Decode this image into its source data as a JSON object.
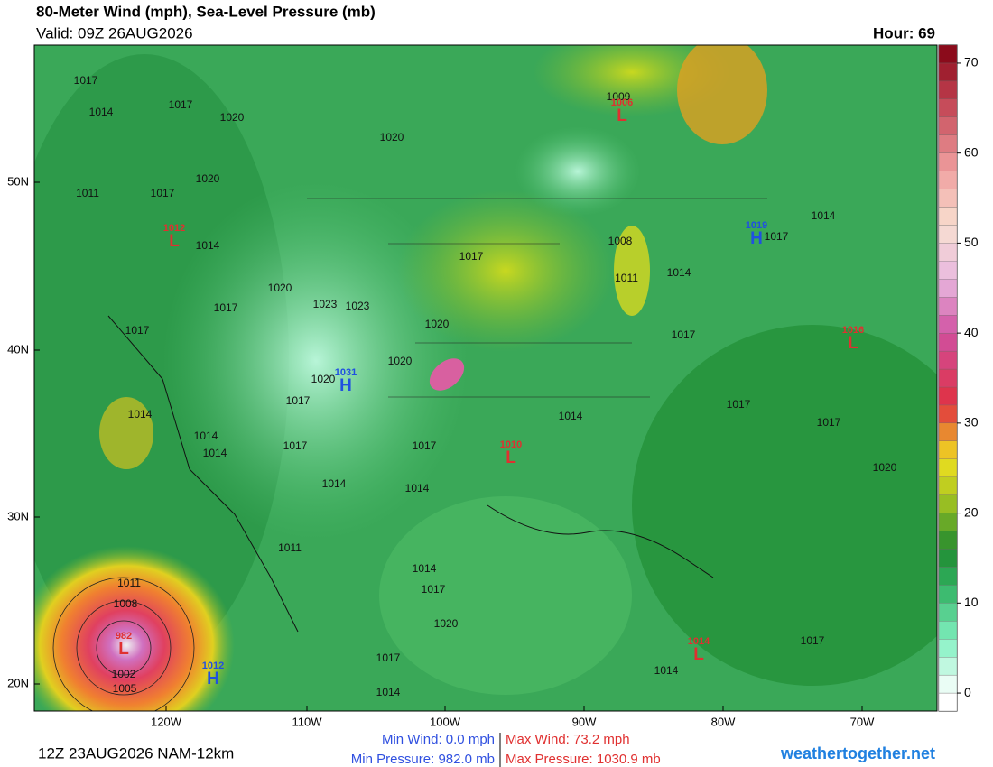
{
  "header": {
    "title": "80-Meter Wind (mph), Sea-Level Pressure (mb)",
    "valid": "Valid: 09Z 26AUG2026",
    "hour": "Hour: 69"
  },
  "axes": {
    "lat_labels": [
      "50N",
      "40N",
      "30N",
      "20N"
    ],
    "lon_labels": [
      "120W",
      "110W",
      "100W",
      "90W",
      "80W",
      "70W"
    ]
  },
  "colorbar": {
    "lim": [
      -2,
      72
    ],
    "ticks": [
      0,
      10,
      20,
      30,
      40,
      50,
      60,
      70
    ]
  },
  "isobar_labels": [
    1017,
    1014,
    1017,
    1020,
    1020,
    1017,
    1011,
    1014,
    1020,
    1017,
    1023,
    1023,
    1017,
    1020,
    1017,
    1020,
    1020,
    1020,
    1017,
    1014,
    1014,
    1014,
    1017,
    1017,
    1014,
    1014,
    1011,
    1014,
    1009,
    1008,
    1011,
    1014,
    1017,
    1017,
    1017,
    1014,
    1017,
    1020,
    1014,
    1017,
    1020,
    1017,
    1014,
    1014,
    1017,
    1011,
    1008,
    1002,
    1005
  ],
  "pressure_centers": [
    {
      "letter": "L",
      "value": "1012"
    },
    {
      "letter": "H",
      "value": "1031"
    },
    {
      "letter": "L",
      "value": "1010"
    },
    {
      "letter": "L",
      "value": "1006"
    },
    {
      "letter": "H",
      "value": "1019"
    },
    {
      "letter": "L",
      "value": "1016"
    },
    {
      "letter": "L",
      "value": "1014"
    },
    {
      "letter": "L",
      "value": "982"
    },
    {
      "letter": "H",
      "value": "1012"
    }
  ],
  "footer": {
    "run": "12Z 23AUG2026 NAM-12km",
    "min_wind": "Min Wind:  0.0 mph",
    "max_wind": "Max Wind: 73.2 mph",
    "min_pressure": "Min Pressure: 982.0 mb",
    "max_pressure": "Max Pressure: 1030.9 mb",
    "site": "weathertogether.net"
  }
}
